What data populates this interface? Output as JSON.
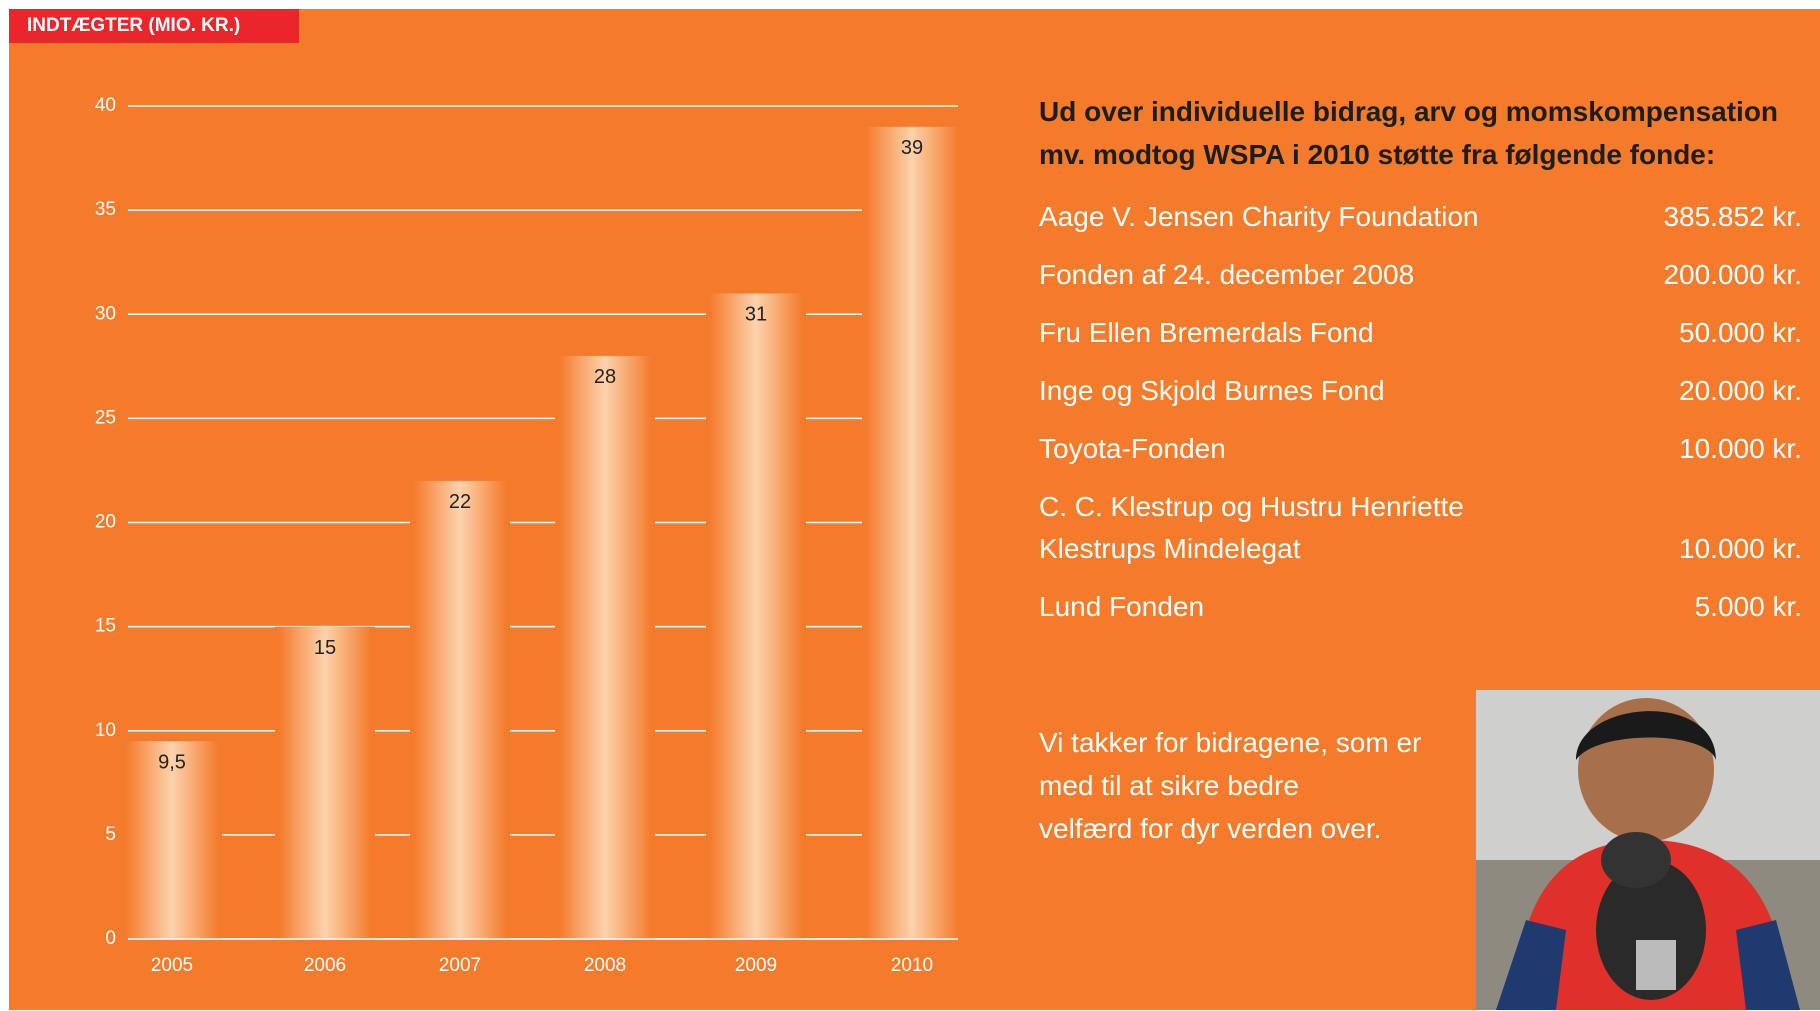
{
  "chart_data": {
    "type": "bar",
    "title": "INDTÆGTER (MIO. KR.)",
    "categories": [
      "2005",
      "2006",
      "2007",
      "2008",
      "2009",
      "2010"
    ],
    "values": [
      9.5,
      15,
      22,
      28,
      31,
      39
    ],
    "value_labels": [
      "9,5",
      "15",
      "22",
      "28",
      "31",
      "39"
    ],
    "color": "#fcd3ad",
    "ylim": [
      0,
      40
    ],
    "yticks": [
      0,
      5,
      10,
      15,
      20,
      25,
      30,
      35,
      40
    ],
    "grid": true
  },
  "sidebar": {
    "heading": "Ud over individuelle bidrag, arv og momskompensation mv. modtog WSPA i 2010 støtte fra følgende fonde:",
    "funds": [
      {
        "name": "Aage V. Jensen Charity Foundation",
        "amount": "385.852 kr."
      },
      {
        "name": "Fonden af 24. december 2008",
        "amount": "200.000 kr."
      },
      {
        "name": "Fru Ellen Bremerdals Fond",
        "amount": "50.000 kr."
      },
      {
        "name": "Inge og Skjold Burnes Fond",
        "amount": "20.000 kr."
      },
      {
        "name": "Toyota-Fonden",
        "amount": "10.000 kr."
      },
      {
        "name": "C. C. Klestrup og Hustru Henriette Klestrups Mindelegat",
        "amount": "10.000 kr."
      },
      {
        "name": "Lund Fonden",
        "amount": "5.000 kr."
      }
    ],
    "thanks": [
      "Vi takker for bidragene, som er",
      "med til at sikre bedre",
      "velfærd for dyr verden over."
    ]
  }
}
